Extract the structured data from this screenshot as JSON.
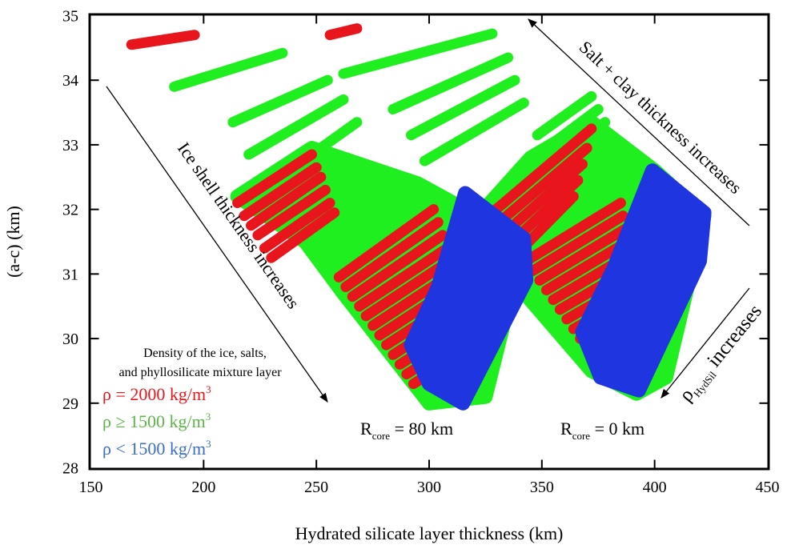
{
  "chart_data": {
    "type": "scatter",
    "xlabel": "Hydrated silicate layer thickness (km)",
    "ylabel": "(a-c) (km)",
    "xlim": [
      150,
      450
    ],
    "ylim": [
      28,
      35
    ],
    "x_ticks": [
      "150",
      "200",
      "250",
      "300",
      "350",
      "400",
      "450"
    ],
    "y_ticks": [
      "28",
      "29",
      "30",
      "31",
      "32",
      "33",
      "34",
      "35"
    ],
    "grid": false,
    "colors": {
      "red": "#e8161c",
      "green": "#1fee1f",
      "blue": "#1e35e0"
    },
    "legend": {
      "placement": "bottom-left",
      "title_lines": [
        "Density of the ice, salts,",
        "and phyllosilicate mixture layer"
      ],
      "entries": [
        {
          "symbol": "ρ",
          "relation": " = 2000 kg/m",
          "exponent": "3",
          "color": "#e8161c"
        },
        {
          "symbol": "ρ",
          "relation": " ≥ 1500 kg/m",
          "exponent": "3",
          "color": "#5db548"
        },
        {
          "symbol": "ρ",
          "relation": " < 1500 kg/m",
          "exponent": "3",
          "color": "#3b6ec2"
        }
      ]
    },
    "annotations": {
      "ice_shell": "Ice shell thickness increases",
      "salt_clay": "Salt + clay thickness increases",
      "rho_symbol": "ρ",
      "rho_sub": "HydSil",
      "rho_rest": " increases",
      "rcore_80": {
        "main": "R",
        "sub": "core",
        "rest": " = 80 km"
      },
      "rcore_0": {
        "main": "R",
        "sub": "core",
        "rest": " = 0 km"
      }
    },
    "series": [
      {
        "group": "R_core = 80 km",
        "kind": "short green isolines (top)",
        "color": "green",
        "lines": [
          [
            [
              187,
              33.9
            ],
            [
              235,
              34.42
            ]
          ],
          [
            [
              213,
              33.35
            ],
            [
              255,
              34.0
            ]
          ],
          [
            [
              220,
              32.85
            ],
            [
              262,
              33.7
            ]
          ],
          [
            [
              230,
              32.4
            ],
            [
              268,
              33.35
            ]
          ],
          [
            [
              262,
              34.1
            ],
            [
              328,
              34.72
            ]
          ],
          [
            [
              284,
              33.55
            ],
            [
              335,
              34.35
            ]
          ],
          [
            [
              292,
              33.15
            ],
            [
              338,
              34.0
            ]
          ],
          [
            [
              298,
              32.75
            ],
            [
              342,
              33.65
            ]
          ]
        ]
      },
      {
        "group": "R_core = 80 km",
        "kind": "green density band",
        "color": "green",
        "polygon": [
          [
            215,
            32.2
          ],
          [
            248,
            32.95
          ],
          [
            295,
            32.4
          ],
          [
            342,
            31.5
          ],
          [
            325,
            29.1
          ],
          [
            300,
            29.0
          ],
          [
            262,
            30.7
          ],
          [
            245,
            31.5
          ]
        ]
      },
      {
        "group": "R_core = 80 km",
        "kind": "red density lines",
        "color": "red",
        "lines": [
          [
            [
              215,
              32.1
            ],
            [
              248,
              32.85
            ]
          ],
          [
            [
              218,
              31.9
            ],
            [
              250,
              32.65
            ]
          ],
          [
            [
              221,
              31.75
            ],
            [
              252,
              32.5
            ]
          ],
          [
            [
              224,
              31.6
            ],
            [
              254,
              32.3
            ]
          ],
          [
            [
              227,
              31.4
            ],
            [
              256,
              32.1
            ]
          ],
          [
            [
              230,
              31.25
            ],
            [
              258,
              31.95
            ]
          ],
          [
            [
              260,
              30.95
            ],
            [
              302,
              32.0
            ]
          ],
          [
            [
              263,
              30.8
            ],
            [
              304,
              31.8
            ]
          ],
          [
            [
              266,
              30.65
            ],
            [
              306,
              31.6
            ]
          ],
          [
            [
              269,
              30.5
            ],
            [
              308,
              31.4
            ]
          ],
          [
            [
              272,
              30.35
            ],
            [
              309,
              31.2
            ]
          ],
          [
            [
              275,
              30.2
            ],
            [
              310,
              31.0
            ]
          ],
          [
            [
              278,
              30.05
            ],
            [
              311,
              30.8
            ]
          ],
          [
            [
              281,
              29.9
            ],
            [
              312,
              30.6
            ]
          ],
          [
            [
              284,
              29.75
            ],
            [
              313,
              30.4
            ]
          ],
          [
            [
              287,
              29.6
            ],
            [
              314,
              30.2
            ]
          ],
          [
            [
              290,
              29.45
            ],
            [
              315,
              30.0
            ]
          ],
          [
            [
              293,
              29.3
            ],
            [
              316,
              29.8
            ]
          ]
        ]
      },
      {
        "group": "R_core = 80 km",
        "kind": "blue density band",
        "color": "blue",
        "polygon": [
          [
            304,
            30.8
          ],
          [
            316,
            32.25
          ],
          [
            342,
            31.55
          ],
          [
            343,
            30.9
          ],
          [
            315,
            29.0
          ],
          [
            300,
            29.3
          ],
          [
            292,
            29.9
          ]
        ]
      },
      {
        "group": "R_core = 0 km",
        "kind": "green isolines (top)",
        "color": "green",
        "lines": [
          [
            [
              348,
              33.15
            ],
            [
              372,
              33.75
            ]
          ],
          [
            [
              352,
              32.95
            ],
            [
              375,
              33.55
            ]
          ],
          [
            [
              356,
              32.75
            ],
            [
              378,
              33.35
            ]
          ]
        ]
      },
      {
        "group": "R_core = 0 km",
        "kind": "green density band",
        "color": "green",
        "polygon": [
          [
            327,
            32.1
          ],
          [
            345,
            32.8
          ],
          [
            372,
            33.35
          ],
          [
            400,
            32.6
          ],
          [
            422,
            31.9
          ],
          [
            405,
            29.4
          ],
          [
            392,
            29.15
          ],
          [
            372,
            29.5
          ],
          [
            335,
            31.0
          ]
        ]
      },
      {
        "group": "R_core = 0 km",
        "kind": "red density lines",
        "color": "red",
        "lines": [
          [
            [
              328,
              31.95
            ],
            [
              372,
              33.25
            ]
          ],
          [
            [
              331,
              31.8
            ],
            [
              370,
              32.95
            ]
          ],
          [
            [
              334,
              31.65
            ],
            [
              368,
              32.7
            ]
          ],
          [
            [
              337,
              31.5
            ],
            [
              366,
              32.45
            ]
          ],
          [
            [
              340,
              31.35
            ],
            [
              364,
              32.2
            ]
          ],
          [
            [
              343,
              31.2
            ],
            [
              385,
              32.1
            ]
          ],
          [
            [
              346,
              31.05
            ],
            [
              386,
              31.9
            ]
          ],
          [
            [
              349,
              30.9
            ],
            [
              387,
              31.7
            ]
          ],
          [
            [
              352,
              30.75
            ],
            [
              388,
              31.5
            ]
          ],
          [
            [
              355,
              30.6
            ],
            [
              389,
              31.3
            ]
          ],
          [
            [
              358,
              30.45
            ],
            [
              390,
              31.1
            ]
          ],
          [
            [
              361,
              30.3
            ],
            [
              391,
              30.9
            ]
          ],
          [
            [
              364,
              30.15
            ],
            [
              392,
              30.7
            ]
          ],
          [
            [
              367,
              30.0
            ],
            [
              393,
              30.5
            ]
          ]
        ]
      },
      {
        "group": "R_core = 0 km",
        "kind": "blue density band",
        "color": "blue",
        "polygon": [
          [
            382,
            31.1
          ],
          [
            399,
            32.6
          ],
          [
            422,
            31.95
          ],
          [
            420,
            31.2
          ],
          [
            393,
            29.2
          ],
          [
            376,
            29.4
          ],
          [
            368,
            30.1
          ]
        ]
      },
      {
        "group": "isolated red points",
        "color": "red",
        "lines": [
          [
            [
              168,
              34.55
            ],
            [
              196,
              34.7
            ]
          ],
          [
            [
              256,
              34.7
            ],
            [
              268,
              34.8
            ]
          ]
        ]
      }
    ]
  }
}
